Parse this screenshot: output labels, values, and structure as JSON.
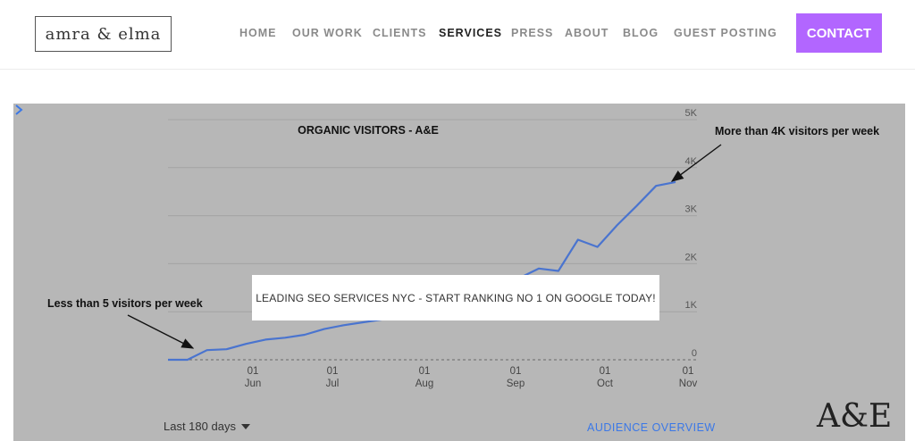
{
  "header": {
    "logo_text": "amra & elma",
    "nav": [
      {
        "label": "HOME"
      },
      {
        "label": "OUR WORK"
      },
      {
        "label": "CLIENTS"
      },
      {
        "label": "SERVICES",
        "active": true
      },
      {
        "label": "PRESS"
      },
      {
        "label": "ABOUT"
      },
      {
        "label": "BLOG"
      },
      {
        "label": "GUEST POSTING"
      }
    ],
    "contact_label": "CONTACT",
    "accent_color": "#b266ff"
  },
  "hero": {
    "overlay_text": "LEADING SEO SERVICES NYC - START RANKING NO 1 ON GOOGLE TODAY!",
    "range_label": "Last 180 days",
    "audience_link": "AUDIENCE OVERVIEW",
    "brand_mark": "A&E",
    "annotation_low": "Less than 5 visitors per week",
    "annotation_high": "More than 4K visitors per week",
    "line_color": "#4a74cf"
  },
  "chart_data": {
    "type": "line",
    "title": "ORGANIC VISITORS - A&E",
    "y_ticks": [
      "0",
      "1K",
      "2K",
      "3K",
      "4K",
      "5K"
    ],
    "x_ticks": [
      {
        "day": "01",
        "month": "Jun"
      },
      {
        "day": "01",
        "month": "Jul"
      },
      {
        "day": "01",
        "month": "Aug"
      },
      {
        "day": "01",
        "month": "Sep"
      },
      {
        "day": "01",
        "month": "Oct"
      },
      {
        "day": "01",
        "month": "Nov"
      }
    ],
    "ylim": [
      0,
      5000
    ],
    "series": [
      {
        "values": [
          0,
          0,
          200,
          220,
          330,
          420,
          460,
          520,
          640,
          720,
          780,
          840,
          900,
          980,
          1080,
          1180,
          1300,
          1480,
          1700,
          1900,
          1850,
          2500,
          2350,
          2800,
          3200,
          3620,
          3700
        ]
      }
    ]
  }
}
